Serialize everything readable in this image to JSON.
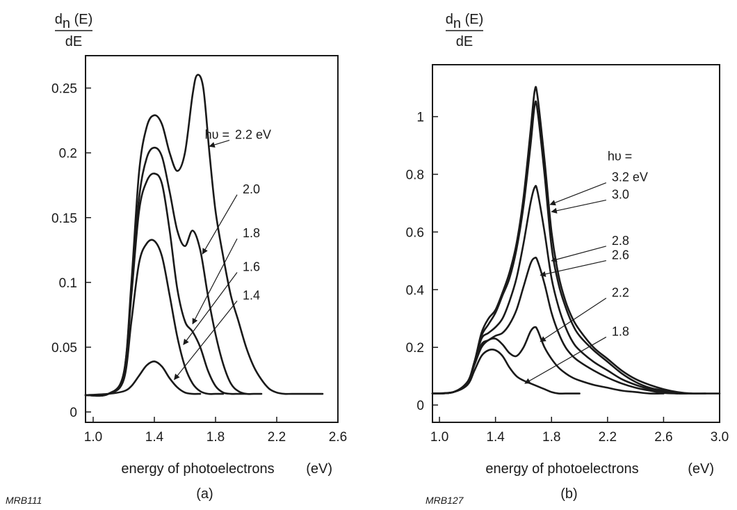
{
  "chart_data": [
    {
      "type": "line",
      "panel_label": "(a)",
      "figure_id": "MRB111",
      "ylabel_num": "d",
      "ylabel_sub": "n",
      "ylabel_rest": " (E)",
      "ylabel_den": "dE",
      "xlabel": "energy of photoelectrons",
      "xunit": "(eV)",
      "xlim": [
        0.95,
        2.6
      ],
      "ylim": [
        -0.008,
        0.275
      ],
      "xticks": [
        1.0,
        1.4,
        1.8,
        2.2,
        2.6
      ],
      "xtick_labels": [
        "1.0",
        "1.4",
        "1.8",
        "2.2",
        "2.6"
      ],
      "yticks": [
        0,
        0.05,
        0.1,
        0.15,
        0.2,
        0.25
      ],
      "ytick_labels": [
        "0",
        "0.05",
        "0.1",
        "0.15",
        "0.2",
        "0.25"
      ],
      "grid": false,
      "legend_heading": "hυ = ",
      "series": [
        {
          "name": "2.2 eV",
          "label": "2.2 eV",
          "x": [
            0.95,
            1.1,
            1.2,
            1.25,
            1.3,
            1.35,
            1.4,
            1.45,
            1.5,
            1.55,
            1.6,
            1.65,
            1.68,
            1.72,
            1.76,
            1.8,
            1.85,
            1.9,
            1.95,
            2.0,
            2.05,
            2.1,
            2.15,
            2.2,
            2.25,
            2.3,
            2.4,
            2.5
          ],
          "y": [
            0.013,
            0.014,
            0.03,
            0.1,
            0.185,
            0.22,
            0.229,
            0.222,
            0.2,
            0.186,
            0.2,
            0.245,
            0.26,
            0.25,
            0.2,
            0.155,
            0.12,
            0.09,
            0.07,
            0.05,
            0.035,
            0.025,
            0.018,
            0.015,
            0.014,
            0.014,
            0.014,
            0.014
          ],
          "arrow": {
            "to": [
              1.76,
              0.205
            ],
            "label_at": [
              1.9,
              0.214
            ]
          }
        },
        {
          "name": "2.0",
          "label": "2.0",
          "x": [
            0.95,
            1.1,
            1.2,
            1.25,
            1.3,
            1.35,
            1.4,
            1.45,
            1.5,
            1.55,
            1.6,
            1.65,
            1.7,
            1.75,
            1.8,
            1.85,
            1.9,
            1.95,
            2.0,
            2.05,
            2.1
          ],
          "y": [
            0.013,
            0.014,
            0.03,
            0.095,
            0.165,
            0.196,
            0.204,
            0.197,
            0.17,
            0.14,
            0.128,
            0.14,
            0.125,
            0.09,
            0.06,
            0.037,
            0.022,
            0.016,
            0.014,
            0.014,
            0.014
          ],
          "arrow": {
            "to": [
              1.715,
              0.122
            ],
            "label_at": [
              1.95,
              0.172
            ]
          }
        },
        {
          "name": "1.8",
          "label": "1.8",
          "x": [
            0.95,
            1.1,
            1.2,
            1.25,
            1.3,
            1.35,
            1.4,
            1.45,
            1.5,
            1.55,
            1.6,
            1.65,
            1.7,
            1.75,
            1.8,
            1.85,
            1.9,
            1.95,
            2.0
          ],
          "y": [
            0.013,
            0.014,
            0.028,
            0.09,
            0.155,
            0.178,
            0.184,
            0.176,
            0.14,
            0.095,
            0.07,
            0.062,
            0.05,
            0.032,
            0.02,
            0.015,
            0.014,
            0.014,
            0.014
          ],
          "arrow": {
            "to": [
              1.65,
              0.068
            ],
            "label_at": [
              1.95,
              0.138
            ]
          }
        },
        {
          "name": "1.6",
          "label": "1.6",
          "x": [
            0.95,
            1.1,
            1.2,
            1.25,
            1.3,
            1.35,
            1.4,
            1.45,
            1.5,
            1.55,
            1.6,
            1.65,
            1.7,
            1.75,
            1.8,
            1.85
          ],
          "y": [
            0.013,
            0.014,
            0.025,
            0.07,
            0.115,
            0.13,
            0.132,
            0.12,
            0.09,
            0.058,
            0.035,
            0.022,
            0.016,
            0.014,
            0.014,
            0.014
          ],
          "arrow": {
            "to": [
              1.59,
              0.052
            ],
            "label_at": [
              1.95,
              0.112
            ]
          }
        },
        {
          "name": "1.4",
          "label": "1.4",
          "x": [
            0.95,
            1.1,
            1.2,
            1.25,
            1.3,
            1.35,
            1.4,
            1.45,
            1.5,
            1.55,
            1.6,
            1.65,
            1.7
          ],
          "y": [
            0.013,
            0.014,
            0.016,
            0.02,
            0.028,
            0.036,
            0.039,
            0.035,
            0.026,
            0.019,
            0.015,
            0.014,
            0.014
          ],
          "arrow": {
            "to": [
              1.53,
              0.025
            ],
            "label_at": [
              1.95,
              0.09
            ]
          }
        }
      ]
    },
    {
      "type": "line",
      "panel_label": "(b)",
      "figure_id": "MRB127",
      "ylabel_num": "d",
      "ylabel_sub": "n",
      "ylabel_rest": " (E)",
      "ylabel_den": "dE",
      "xlabel": "energy of photoelectrons",
      "xunit": "(eV)",
      "xlim": [
        0.95,
        3.0
      ],
      "ylim": [
        -0.06,
        1.18
      ],
      "xticks": [
        1.0,
        1.4,
        1.8,
        2.2,
        2.6,
        3.0
      ],
      "xtick_labels": [
        "1.0",
        "1.4",
        "1.8",
        "2.2",
        "2.6",
        "3.0"
      ],
      "yticks": [
        0,
        0.2,
        0.4,
        0.6,
        0.8,
        1.0
      ],
      "ytick_labels": [
        "0",
        "0.2",
        "0.4",
        "0.6",
        "0.8",
        "1"
      ],
      "grid": false,
      "legend_heading": "hυ =",
      "series": [
        {
          "name": "3.2 eV",
          "label": "3.2 eV",
          "x": [
            0.95,
            1.1,
            1.2,
            1.25,
            1.3,
            1.35,
            1.4,
            1.45,
            1.5,
            1.55,
            1.6,
            1.65,
            1.68,
            1.7,
            1.75,
            1.8,
            1.85,
            1.9,
            1.95,
            2.0,
            2.1,
            2.2,
            2.3,
            2.4,
            2.5,
            2.6,
            2.7,
            2.8,
            2.9,
            3.0
          ],
          "y": [
            0.04,
            0.045,
            0.08,
            0.15,
            0.25,
            0.3,
            0.33,
            0.39,
            0.46,
            0.56,
            0.72,
            0.95,
            1.09,
            1.07,
            0.85,
            0.6,
            0.45,
            0.36,
            0.3,
            0.26,
            0.2,
            0.16,
            0.12,
            0.09,
            0.07,
            0.055,
            0.045,
            0.04,
            0.04,
            0.04
          ],
          "arrow": {
            "to": [
              1.79,
              0.695
            ],
            "label_at": [
              2.2,
              0.79
            ]
          }
        },
        {
          "name": "3.0",
          "label": "3.0",
          "x": [
            0.95,
            1.1,
            1.2,
            1.25,
            1.3,
            1.35,
            1.4,
            1.45,
            1.5,
            1.55,
            1.6,
            1.65,
            1.68,
            1.7,
            1.75,
            1.8,
            1.85,
            1.9,
            1.95,
            2.0,
            2.1,
            2.2,
            2.3,
            2.4,
            2.5,
            2.6,
            2.7,
            2.8,
            2.9
          ],
          "y": [
            0.04,
            0.045,
            0.08,
            0.15,
            0.24,
            0.28,
            0.32,
            0.38,
            0.44,
            0.54,
            0.69,
            0.9,
            1.04,
            1.02,
            0.8,
            0.55,
            0.42,
            0.34,
            0.28,
            0.24,
            0.19,
            0.15,
            0.11,
            0.08,
            0.06,
            0.05,
            0.042,
            0.04,
            0.04
          ],
          "arrow": {
            "to": [
              1.8,
              0.67
            ],
            "label_at": [
              2.2,
              0.73
            ]
          }
        },
        {
          "name": "2.8",
          "label": "2.8",
          "x": [
            0.95,
            1.1,
            1.2,
            1.25,
            1.3,
            1.35,
            1.4,
            1.45,
            1.5,
            1.55,
            1.6,
            1.65,
            1.68,
            1.7,
            1.75,
            1.8,
            1.85,
            1.9,
            1.95,
            2.0,
            2.1,
            2.2,
            2.3,
            2.4,
            2.5,
            2.6,
            2.7,
            2.8
          ],
          "y": [
            0.04,
            0.045,
            0.08,
            0.15,
            0.23,
            0.25,
            0.27,
            0.3,
            0.36,
            0.44,
            0.56,
            0.7,
            0.755,
            0.74,
            0.6,
            0.44,
            0.34,
            0.27,
            0.22,
            0.19,
            0.15,
            0.12,
            0.09,
            0.07,
            0.055,
            0.045,
            0.04,
            0.04
          ],
          "arrow": {
            "to": [
              1.8,
              0.5
            ],
            "label_at": [
              2.2,
              0.57
            ]
          }
        },
        {
          "name": "2.6",
          "label": "2.6",
          "x": [
            0.95,
            1.1,
            1.2,
            1.25,
            1.3,
            1.35,
            1.4,
            1.45,
            1.5,
            1.55,
            1.6,
            1.65,
            1.68,
            1.7,
            1.75,
            1.8,
            1.85,
            1.9,
            1.95,
            2.0,
            2.1,
            2.2,
            2.3,
            2.4,
            2.5,
            2.6,
            2.7
          ],
          "y": [
            0.04,
            0.045,
            0.08,
            0.14,
            0.21,
            0.225,
            0.24,
            0.25,
            0.28,
            0.33,
            0.41,
            0.49,
            0.51,
            0.5,
            0.42,
            0.32,
            0.25,
            0.2,
            0.17,
            0.15,
            0.12,
            0.095,
            0.075,
            0.06,
            0.05,
            0.042,
            0.04
          ],
          "arrow": {
            "to": [
              1.72,
              0.45
            ],
            "label_at": [
              2.2,
              0.52
            ]
          }
        },
        {
          "name": "2.2",
          "label": "2.2",
          "x": [
            0.95,
            1.1,
            1.2,
            1.25,
            1.3,
            1.35,
            1.4,
            1.45,
            1.5,
            1.55,
            1.6,
            1.65,
            1.68,
            1.7,
            1.75,
            1.8,
            1.85,
            1.9,
            1.95,
            2.0,
            2.1,
            2.2,
            2.3,
            2.4,
            2.5,
            2.6
          ],
          "y": [
            0.04,
            0.045,
            0.08,
            0.14,
            0.2,
            0.225,
            0.23,
            0.21,
            0.18,
            0.17,
            0.2,
            0.255,
            0.27,
            0.26,
            0.2,
            0.16,
            0.13,
            0.11,
            0.095,
            0.085,
            0.07,
            0.06,
            0.05,
            0.045,
            0.04,
            0.04
          ],
          "arrow": {
            "to": [
              1.72,
              0.22
            ],
            "label_at": [
              2.2,
              0.39
            ]
          }
        },
        {
          "name": "1.8",
          "label": "1.8",
          "x": [
            0.95,
            1.1,
            1.2,
            1.25,
            1.3,
            1.35,
            1.4,
            1.45,
            1.5,
            1.55,
            1.6,
            1.65,
            1.7,
            1.75,
            1.8,
            1.85,
            1.9,
            2.0
          ],
          "y": [
            0.04,
            0.045,
            0.07,
            0.12,
            0.17,
            0.19,
            0.19,
            0.17,
            0.13,
            0.1,
            0.085,
            0.075,
            0.065,
            0.055,
            0.045,
            0.04,
            0.04,
            0.04
          ],
          "arrow": {
            "to": [
              1.61,
              0.075
            ],
            "label_at": [
              2.2,
              0.255
            ]
          }
        }
      ]
    }
  ]
}
